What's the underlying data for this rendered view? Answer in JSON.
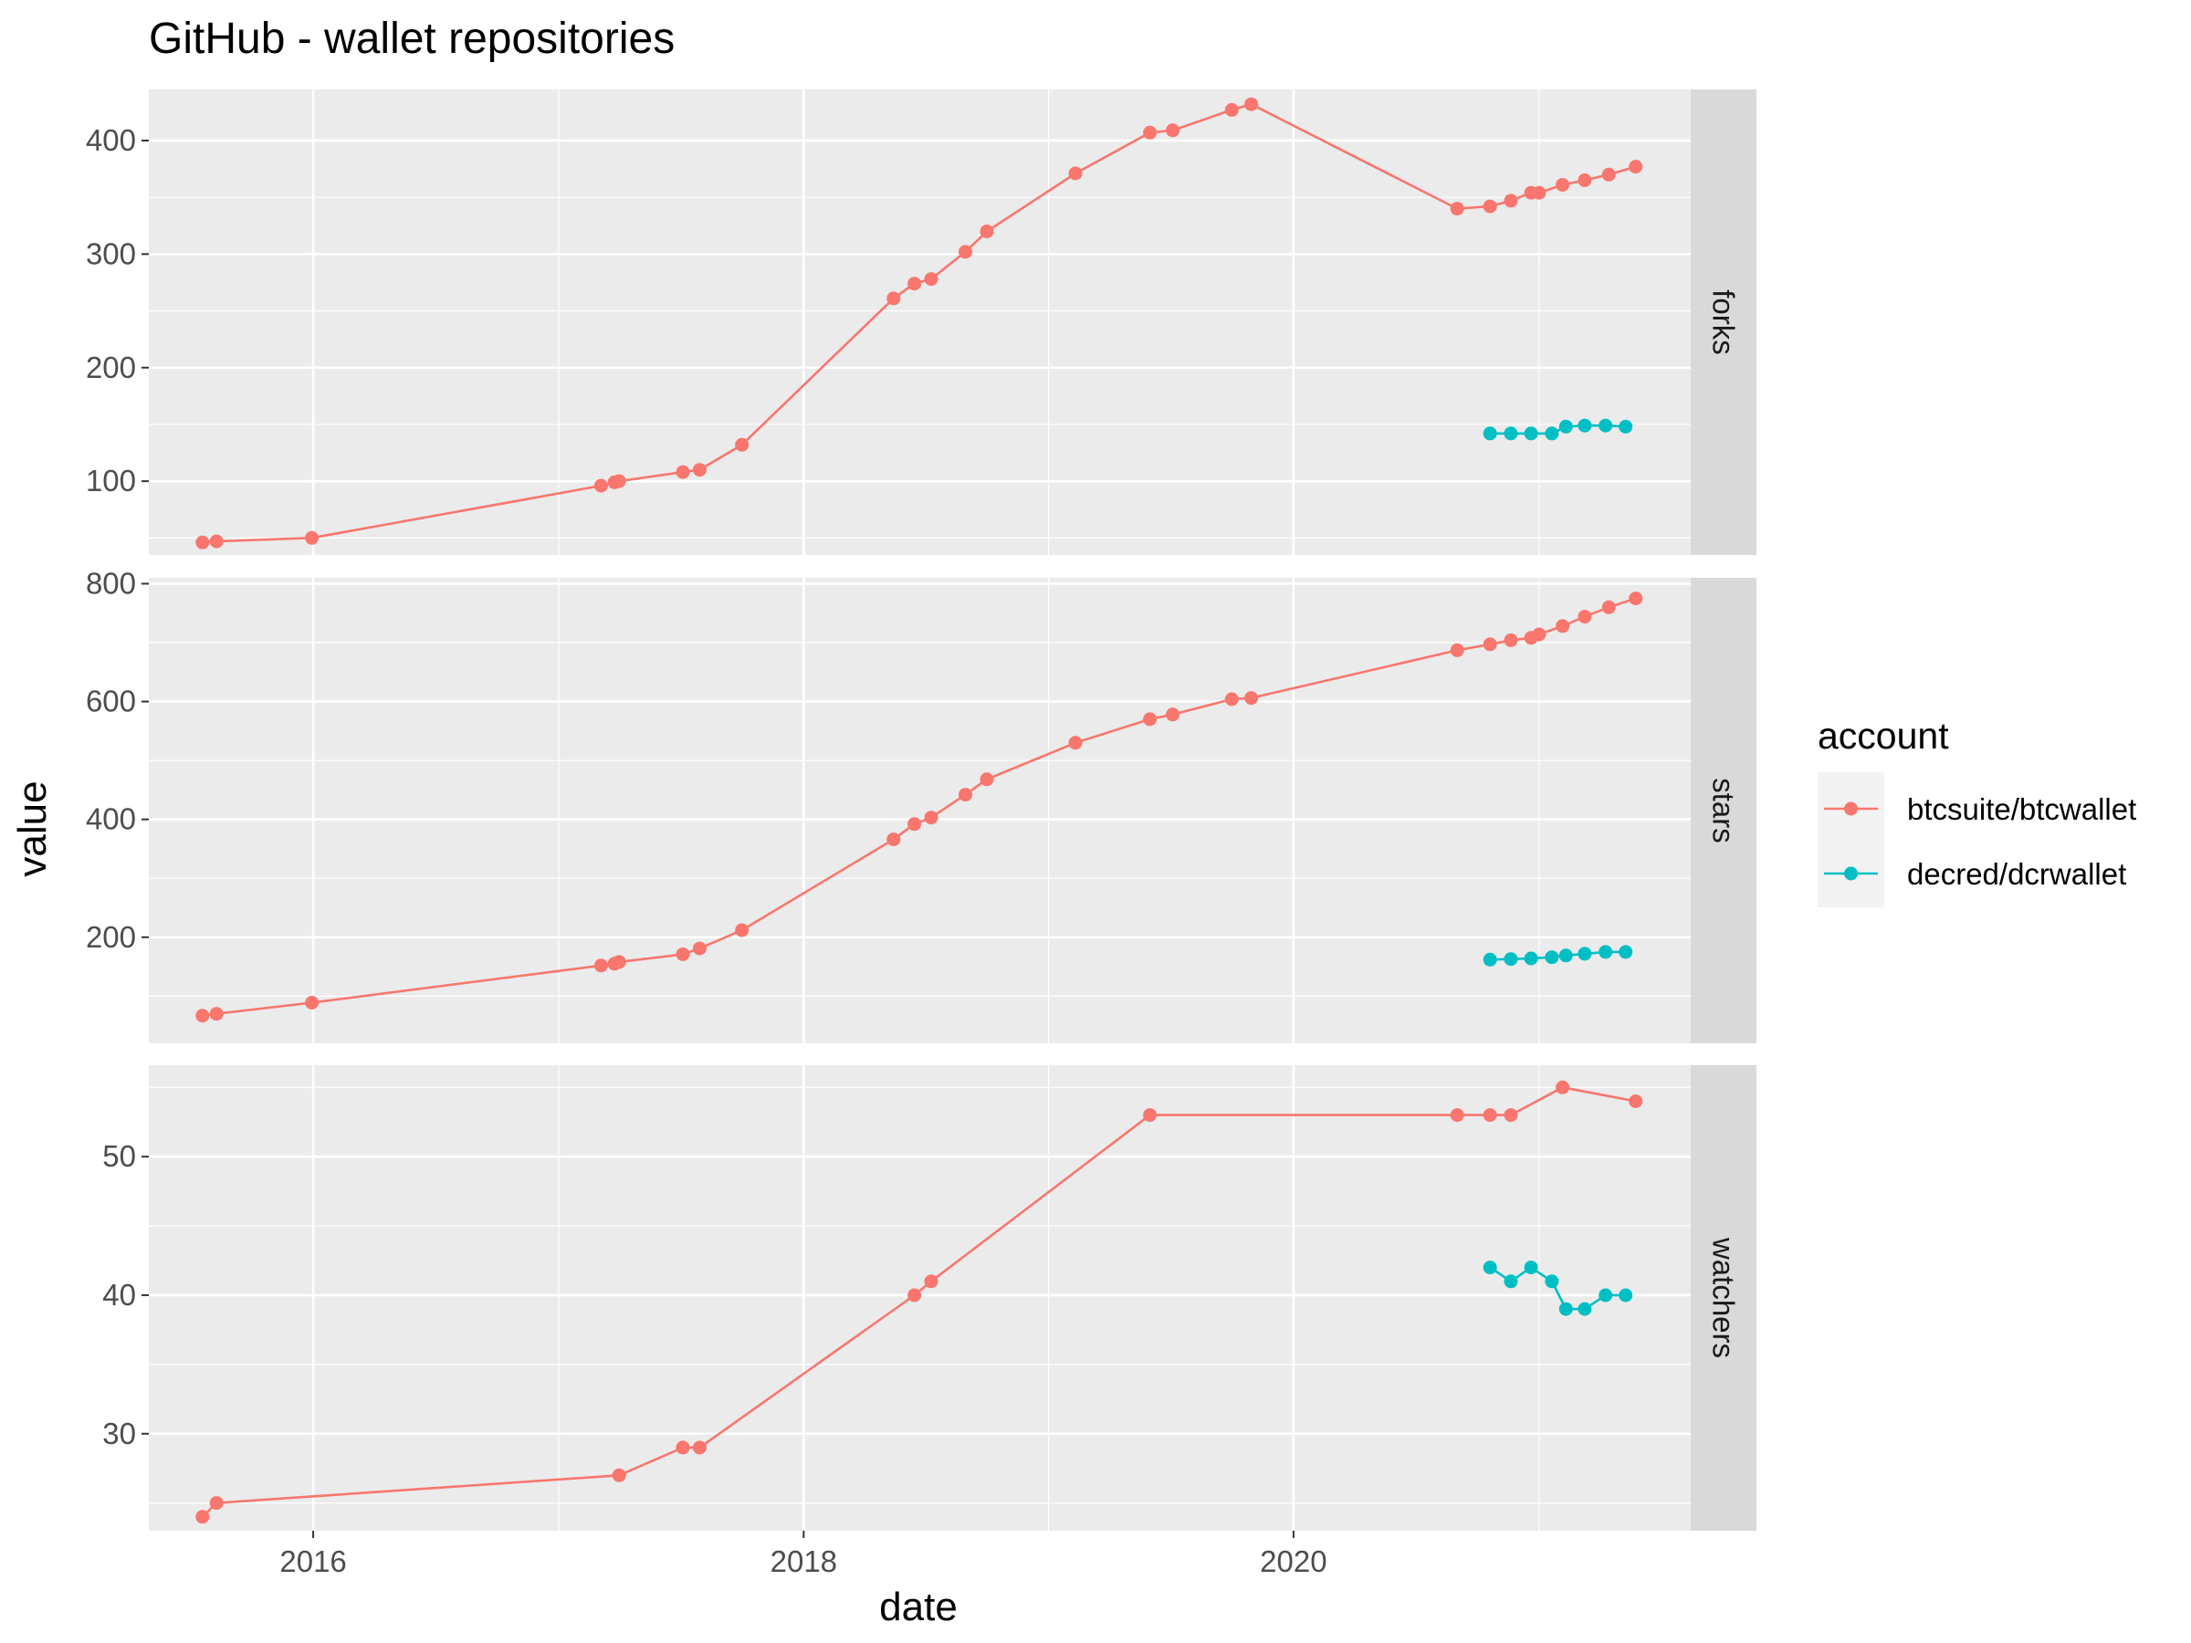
{
  "chart_data": {
    "type": "line",
    "title": "GitHub - wallet repositories",
    "xlabel": "date",
    "ylabel": "value",
    "x_ticks": [
      "2016",
      "2018",
      "2020"
    ],
    "legend": {
      "title": "account",
      "position": "right",
      "entries": [
        "btcsuite/btcwallet",
        "decred/dcrwallet"
      ]
    },
    "colors": {
      "btcsuite/btcwallet": "#F8766D",
      "decred/dcrwallet": "#00BFC4",
      "panel_background": "#EBEBEB",
      "strip_background": "#D9D9D9",
      "grid": "#FFFFFF"
    },
    "grid": true,
    "x_range": [
      "2015-05-01",
      "2021-08-15"
    ],
    "panels": [
      {
        "label": "forks",
        "ylim": [
          35,
          445
        ],
        "y_ticks": [
          100,
          200,
          300,
          400
        ],
        "series": [
          {
            "name": "btcsuite/btcwallet",
            "points": [
              [
                "2015-07-20",
                46
              ],
              [
                "2015-08-10",
                47
              ],
              [
                "2015-12-30",
                50
              ],
              [
                "2017-03-05",
                96
              ],
              [
                "2017-03-25",
                99
              ],
              [
                "2017-04-01",
                100
              ],
              [
                "2017-07-05",
                108
              ],
              [
                "2017-07-30",
                110
              ],
              [
                "2017-10-01",
                132
              ],
              [
                "2018-05-15",
                261
              ],
              [
                "2018-06-15",
                274
              ],
              [
                "2018-07-10",
                278
              ],
              [
                "2018-08-30",
                302
              ],
              [
                "2018-10-01",
                320
              ],
              [
                "2019-02-10",
                371
              ],
              [
                "2019-06-01",
                407
              ],
              [
                "2019-07-05",
                409
              ],
              [
                "2019-10-01",
                427
              ],
              [
                "2019-10-30",
                432
              ],
              [
                "2020-09-01",
                340
              ],
              [
                "2020-10-20",
                342
              ],
              [
                "2020-11-20",
                347
              ],
              [
                "2020-12-20",
                354
              ],
              [
                "2021-01-01",
                354
              ],
              [
                "2021-02-05",
                361
              ],
              [
                "2021-03-10",
                365
              ],
              [
                "2021-04-15",
                370
              ],
              [
                "2021-05-25",
                377
              ]
            ]
          },
          {
            "name": "decred/dcrwallet",
            "points": [
              [
                "2020-10-20",
                142
              ],
              [
                "2020-11-20",
                142
              ],
              [
                "2020-12-20",
                142
              ],
              [
                "2021-01-20",
                142
              ],
              [
                "2021-02-10",
                148
              ],
              [
                "2021-03-10",
                149
              ],
              [
                "2021-04-10",
                149
              ],
              [
                "2021-05-10",
                148
              ]
            ]
          }
        ]
      },
      {
        "label": "stars",
        "ylim": [
          20,
          810
        ],
        "y_ticks": [
          200,
          400,
          600,
          800
        ],
        "series": [
          {
            "name": "btcsuite/btcwallet",
            "points": [
              [
                "2015-07-20",
                67
              ],
              [
                "2015-08-10",
                70
              ],
              [
                "2015-12-30",
                89
              ],
              [
                "2017-03-05",
                152
              ],
              [
                "2017-03-25",
                155
              ],
              [
                "2017-04-01",
                158
              ],
              [
                "2017-07-05",
                171
              ],
              [
                "2017-07-30",
                181
              ],
              [
                "2017-10-01",
                212
              ],
              [
                "2018-05-15",
                366
              ],
              [
                "2018-06-15",
                392
              ],
              [
                "2018-07-10",
                403
              ],
              [
                "2018-08-30",
                442
              ],
              [
                "2018-10-01",
                468
              ],
              [
                "2019-02-10",
                530
              ],
              [
                "2019-06-01",
                570
              ],
              [
                "2019-07-05",
                578
              ],
              [
                "2019-10-01",
                604
              ],
              [
                "2019-10-30",
                606
              ],
              [
                "2020-09-01",
                687
              ],
              [
                "2020-10-20",
                697
              ],
              [
                "2020-11-20",
                704
              ],
              [
                "2020-12-20",
                708
              ],
              [
                "2021-01-01",
                714
              ],
              [
                "2021-02-05",
                728
              ],
              [
                "2021-03-10",
                744
              ],
              [
                "2021-04-15",
                760
              ],
              [
                "2021-05-25",
                775
              ]
            ]
          },
          {
            "name": "decred/dcrwallet",
            "points": [
              [
                "2020-10-20",
                162
              ],
              [
                "2020-11-20",
                163
              ],
              [
                "2020-12-20",
                164
              ],
              [
                "2021-01-20",
                166
              ],
              [
                "2021-02-10",
                169
              ],
              [
                "2021-03-10",
                172
              ],
              [
                "2021-04-10",
                175
              ],
              [
                "2021-05-10",
                175
              ]
            ]
          }
        ]
      },
      {
        "label": "watchers",
        "ylim": [
          23,
          56.6
        ],
        "y_ticks": [
          30,
          40,
          50
        ],
        "series": [
          {
            "name": "btcsuite/btcwallet",
            "points": [
              [
                "2015-07-20",
                24
              ],
              [
                "2015-08-10",
                25
              ],
              [
                "2017-04-01",
                27
              ],
              [
                "2017-07-05",
                29
              ],
              [
                "2017-07-30",
                29
              ],
              [
                "2018-06-15",
                40
              ],
              [
                "2018-07-10",
                41
              ],
              [
                "2019-06-01",
                53
              ],
              [
                "2020-09-01",
                53
              ],
              [
                "2020-10-20",
                53
              ],
              [
                "2020-11-20",
                53
              ],
              [
                "2021-02-05",
                55
              ],
              [
                "2021-05-25",
                54
              ]
            ]
          },
          {
            "name": "decred/dcrwallet",
            "points": [
              [
                "2020-10-20",
                42
              ],
              [
                "2020-11-20",
                41
              ],
              [
                "2020-12-20",
                42
              ],
              [
                "2021-01-20",
                41
              ],
              [
                "2021-02-10",
                39
              ],
              [
                "2021-03-10",
                39
              ],
              [
                "2021-04-10",
                40
              ],
              [
                "2021-05-10",
                40
              ]
            ]
          }
        ]
      }
    ]
  }
}
